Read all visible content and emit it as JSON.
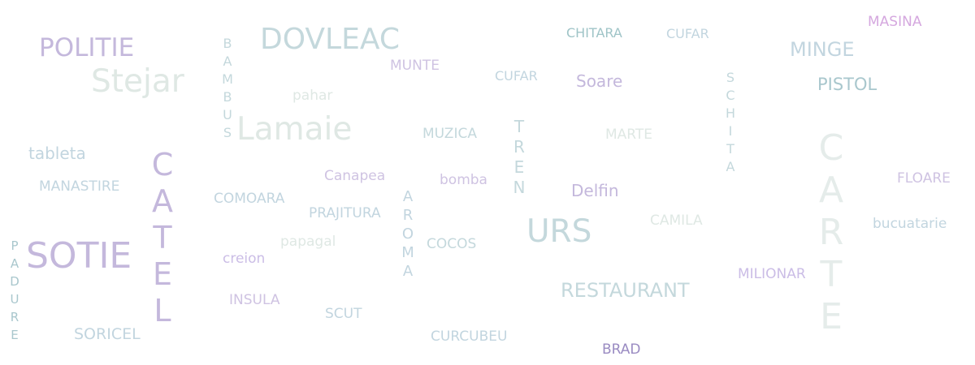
{
  "words": {
    "masina": "MASINA",
    "chitara": "CHITARA",
    "cufar_top": "CUFAR",
    "dovleac": "DOVLEAC",
    "politie": "POLITIE",
    "minge": "MINGE",
    "munte": "MUNTE",
    "cufar_mid": "CUFAR",
    "soare": "Soare",
    "pistol": "PISTOL",
    "stejar": "Stejar",
    "pahar": "pahar",
    "lamaie": "Lamaie",
    "muzica": "MUZICA",
    "marte": "MARTE",
    "tableta": "tableta",
    "canapea": "Canapea",
    "bomba": "bomba",
    "manastire": "MANASTIRE",
    "delfin": "Delfin",
    "floare": "FLOARE",
    "comoara": "COMOARA",
    "prajitura": "PRAJITURA",
    "camila": "CAMILA",
    "urs": "URS",
    "bucuatarie": "bucuatarie",
    "papagal": "papagal",
    "cocos": "COCOS",
    "sotie": "SOTIE",
    "creion": "creion",
    "milionar": "MILIONAR",
    "restaurant": "RESTAURANT",
    "insula": "INSULA",
    "scut": "SCUT",
    "soricel": "SORICEL",
    "curcubeu": "CURCUBEU",
    "brad": "BRAD"
  },
  "vertical_words": {
    "bambus": [
      "B",
      "A",
      "M",
      "B",
      "U",
      "S"
    ],
    "schita": [
      "S",
      "C",
      "H",
      "I",
      "T",
      "A"
    ],
    "tren": [
      "T",
      "R",
      "E",
      "N"
    ],
    "catel": [
      "C",
      "A",
      "T",
      "E",
      "L"
    ],
    "aroma": [
      "A",
      "R",
      "O",
      "M",
      "A"
    ],
    "carte": [
      "C",
      "A",
      "R",
      "T",
      "E"
    ],
    "padure": [
      "P",
      "A",
      "D",
      "U",
      "R",
      "E"
    ]
  }
}
